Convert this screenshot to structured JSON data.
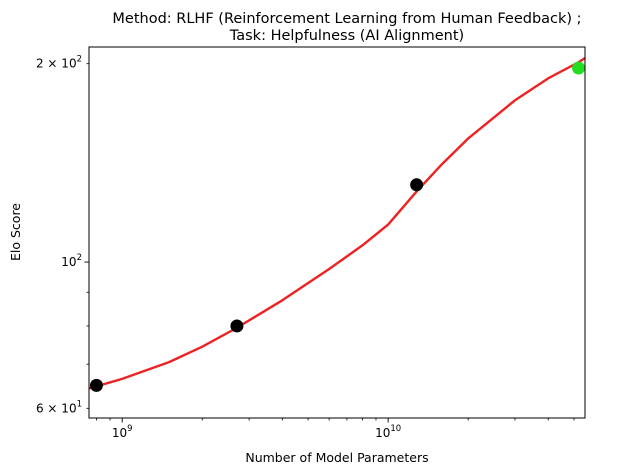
{
  "chart_data": {
    "type": "scatter",
    "title_line1": "Method: RLHF (Reinforcement Learning from Human Feedback) ;",
    "title_line2": "Task: Helpfulness (AI Alignment)",
    "xlabel": "Number of Model Parameters",
    "ylabel": "Elo Score",
    "xscale": "log",
    "yscale": "log",
    "xlim": [
      750000000,
      55000000000
    ],
    "ylim": [
      58,
      212
    ],
    "x_ticks": [
      {
        "base": "10",
        "exp": "9"
      },
      {
        "base": "10",
        "exp": "10"
      }
    ],
    "y_ticks": [
      {
        "coef": "6 × 10",
        "exp": "1",
        "value": 60
      },
      {
        "coef": "10",
        "exp": "2",
        "value": 100
      },
      {
        "coef": "2 × 10",
        "exp": "2",
        "value": 200
      }
    ],
    "points": [
      {
        "x": 800000000,
        "y": 65,
        "color": "#000000"
      },
      {
        "x": 2700000000,
        "y": 80,
        "color": "#000000"
      },
      {
        "x": 12800000000,
        "y": 131,
        "color": "#000000"
      },
      {
        "x": 52000000000,
        "y": 197,
        "color": "#22dd22"
      }
    ],
    "fit_curve": {
      "color": "#ee2222",
      "x": [
        750000000,
        1000000000,
        1500000000,
        2000000000,
        2700000000,
        4000000000,
        6000000000,
        8000000000,
        10000000000,
        12800000000,
        16000000000,
        20000000000,
        30000000000,
        40000000000,
        52000000000,
        55000000000
      ],
      "y": [
        64.3,
        66.5,
        70.5,
        74.4,
        79.5,
        87.5,
        97.6,
        106,
        114,
        128,
        141,
        154,
        176,
        190,
        201,
        204
      ]
    },
    "grid": false
  }
}
